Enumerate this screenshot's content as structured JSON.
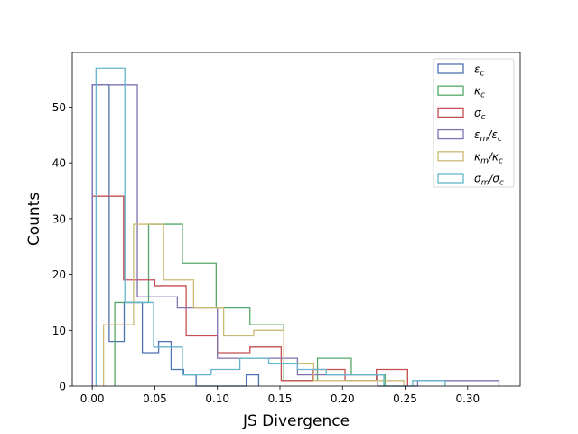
{
  "chart_data": {
    "type": "histogram-step",
    "title": "",
    "xlabel": "JS Divergence",
    "ylabel": "Counts",
    "xlim": [
      -0.016,
      0.342
    ],
    "ylim": [
      0,
      59.8
    ],
    "xticks": [
      0.0,
      0.05,
      0.1,
      0.15,
      0.2,
      0.25,
      0.3
    ],
    "xtick_labels": [
      "0.00",
      "0.05",
      "0.10",
      "0.15",
      "0.20",
      "0.25",
      "0.30"
    ],
    "yticks": [
      0,
      10,
      20,
      30,
      40,
      50
    ],
    "ytick_labels": [
      "0",
      "10",
      "20",
      "30",
      "40",
      "50"
    ],
    "grid": false,
    "legend_position": "top-right",
    "series": [
      {
        "name": "ε_c",
        "legend_base": "ε",
        "legend_sub": "c",
        "color": "#4c72b0",
        "edges": [
          0.0,
          0.0135,
          0.0255,
          0.04,
          0.053,
          0.063,
          0.073,
          0.083,
          0.093,
          0.103,
          0.113,
          0.123,
          0.133
        ],
        "counts": [
          54,
          8,
          15,
          6,
          8,
          3,
          2,
          0,
          0,
          0,
          0,
          2
        ]
      },
      {
        "name": "κ_c",
        "legend_base": "κ",
        "legend_sub": "c",
        "color": "#55a868",
        "edges": [
          0.018,
          0.045,
          0.072,
          0.099,
          0.126,
          0.153,
          0.18,
          0.207,
          0.234
        ],
        "counts": [
          15,
          29,
          22,
          14,
          11,
          1,
          5,
          2
        ]
      },
      {
        "name": "σ_c",
        "legend_base": "σ",
        "legend_sub": "c",
        "color": "#c44e52",
        "edges": [
          0.0,
          0.025,
          0.05,
          0.075,
          0.1,
          0.126,
          0.151,
          0.176,
          0.202,
          0.227,
          0.252
        ],
        "counts": [
          34,
          19,
          18,
          9,
          6,
          7,
          1,
          3,
          1,
          3
        ]
      },
      {
        "name": "ε_m/ε_c",
        "legend_base": "ε",
        "legend_sub": "m",
        "legend_rest": "/ε",
        "legend_sub2": "c",
        "color": "#8172b2",
        "edges": [
          0.0,
          0.036,
          0.068,
          0.1,
          0.132,
          0.164,
          0.196,
          0.228,
          0.26,
          0.292,
          0.325
        ],
        "counts": [
          54,
          16,
          14,
          5,
          5,
          2,
          2,
          0,
          1,
          1
        ]
      },
      {
        "name": "κ_m/κ_c",
        "legend_base": "κ",
        "legend_sub": "m",
        "legend_rest": "/κ",
        "legend_sub2": "c",
        "color": "#ccb974",
        "edges": [
          0.009,
          0.033,
          0.057,
          0.081,
          0.105,
          0.129,
          0.153,
          0.177,
          0.201,
          0.225,
          0.249
        ],
        "counts": [
          11,
          29,
          19,
          14,
          9,
          10,
          4,
          1,
          1,
          1
        ]
      },
      {
        "name": "σ_m/σ_c",
        "legend_base": "σ",
        "legend_sub": "m",
        "legend_rest": "/σ",
        "legend_sub2": "c",
        "color": "#64b5cd",
        "edges": [
          0.003,
          0.026,
          0.049,
          0.072,
          0.095,
          0.118,
          0.141,
          0.164,
          0.187,
          0.21,
          0.233,
          0.256,
          0.282
        ],
        "counts": [
          57,
          15,
          7,
          2,
          3,
          5,
          4,
          3,
          2,
          2,
          0,
          1
        ]
      }
    ]
  }
}
